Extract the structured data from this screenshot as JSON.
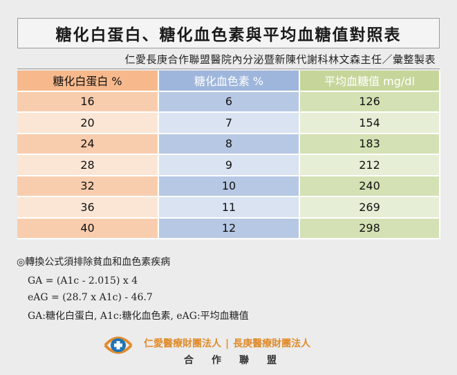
{
  "title": "糖化白蛋白、糖化血色素與平均血糖值對照表",
  "subtitle": "仁愛長庚合作聯盟醫院內分泌暨新陳代謝科林文森主任／彙整製表",
  "table": {
    "headers": [
      "糖化白蛋白 %",
      "糖化血色素 %",
      "平均血糖值 mg/dl"
    ],
    "rows": [
      [
        "16",
        "6",
        "126"
      ],
      [
        "20",
        "7",
        "154"
      ],
      [
        "24",
        "8",
        "183"
      ],
      [
        "28",
        "9",
        "212"
      ],
      [
        "32",
        "10",
        "240"
      ],
      [
        "36",
        "11",
        "269"
      ],
      [
        "40",
        "12",
        "298"
      ]
    ]
  },
  "notes": {
    "heading": "◎轉換公式須排除貧血和血色素疾病",
    "formula1": "GA = (A1c - 2.015) x 4",
    "formula2": "eAG = (28.7 x A1c) - 46.7",
    "legend": "GA:糖化白蛋白, A1c:糖化血色素, eAG:平均血糖值"
  },
  "footer": {
    "org1": "仁愛醫療財團法人",
    "separator": "|",
    "org2": "長庚醫療財團法人",
    "cooperation": "合作聯盟",
    "logo_icon": "alliance-logo-icon",
    "colors": {
      "orange": "#e08c2c",
      "blue": "#1f74b8"
    }
  }
}
